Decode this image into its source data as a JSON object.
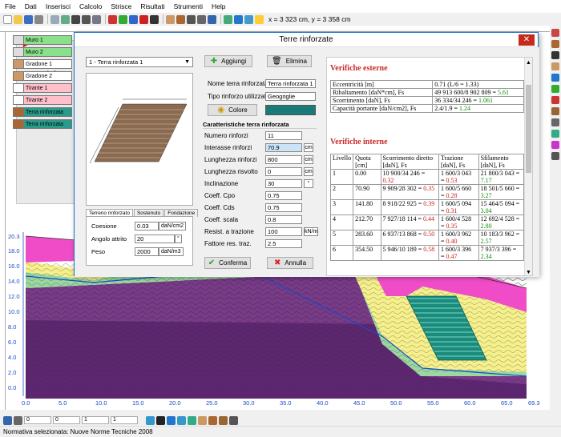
{
  "menu": [
    "File",
    "Dati",
    "Inserisci",
    "Calcolo",
    "Strisce",
    "Risultati",
    "Strumenti",
    "Help"
  ],
  "toolbar": {
    "coords": "x = 3 323 cm, y = 3 358 cm"
  },
  "background_panel": {
    "title": "Terra rinfo",
    "items": [
      {
        "label": "Muro 1",
        "color": "#8be08b"
      },
      {
        "label": "Muro 2",
        "color": "#8be08b"
      },
      {
        "label": "Gradone 1",
        "color": "#ffffff"
      },
      {
        "label": "Gradone 2",
        "color": "#ffffff"
      },
      {
        "label": "Tirante 1",
        "color": "#ffc0cb"
      },
      {
        "label": "Tirante 2",
        "color": "#ffc0cb"
      },
      {
        "label": "Terra rinforzata",
        "color": "#2a9c8c"
      },
      {
        "label": "Terra rinforzata",
        "color": "#2a9c8c"
      }
    ]
  },
  "dialog": {
    "title": "Terre rinforzate",
    "selector": "1 - Terra rinforzata 1",
    "add_button": "Aggiungi",
    "delete_button": "Elimina",
    "name_label": "Nome terra rinforzata",
    "name_value": "Terra rinforzata 1",
    "type_label": "Tipo rinforzo utilizzato",
    "type_value": "Geogriglie",
    "color_button": "Colore",
    "color_value": "#1a7a7a",
    "section_title": "Caratteristiche terra rinforzata",
    "fields": [
      {
        "label": "Numero rinforzi",
        "value": "11",
        "unit": ""
      },
      {
        "label": "Interasse rinforzi",
        "value": "70.9",
        "unit": "cm"
      },
      {
        "label": "Lunghezza rinforzi",
        "value": "800",
        "unit": "cm"
      },
      {
        "label": "Lunghezza risvolto",
        "value": "0",
        "unit": "cm"
      },
      {
        "label": "Inclinazione",
        "value": "30",
        "unit": "°"
      },
      {
        "label": "Coeff. Cpo",
        "value": "0.75",
        "unit": ""
      },
      {
        "label": "Coeff. Cds",
        "value": "0.75",
        "unit": ""
      },
      {
        "label": "Coeff. scala",
        "value": "0.8",
        "unit": ""
      },
      {
        "label": "Resist. a trazione",
        "value": "100",
        "unit": "kN/m"
      },
      {
        "label": "Fattore res. traz.",
        "value": "2.5",
        "unit": ""
      }
    ],
    "tabs": [
      "Terreno rinforzato",
      "Sostenuto",
      "Fondazione"
    ],
    "soil": [
      {
        "label": "Coesione",
        "value": "0.03",
        "unit": "daN/cm2"
      },
      {
        "label": "Angolo attrito",
        "value": "20",
        "unit": "°"
      },
      {
        "label": "Peso",
        "value": "2000",
        "unit": "daN/m3"
      }
    ],
    "confirm_button": "Conferma",
    "cancel_button": "Annulla"
  },
  "verifiche": {
    "external_title": "Verifiche esterne",
    "external": [
      {
        "label": "Eccentricità [m]",
        "value": "0.71 (L/6 = 1.33)",
        "result": ""
      },
      {
        "label": "Ribaltamento [daN*cm], Fs",
        "value": "49 913 600/8 902 809 = ",
        "result": "5.61"
      },
      {
        "label": "Scorrimento [daN], Fs",
        "value": "36 334/34 246 = ",
        "result": "1.061"
      },
      {
        "label": "Capacità portante [daN/cm2], Fs",
        "value": "2.4/1.9 = ",
        "result": "1.24"
      }
    ],
    "internal_title": "Verifiche interne",
    "internal_headers": [
      "Livello",
      "Quota [cm]",
      "Scorrimento diretto [daN], Fs",
      "Trazione [daN], Fs",
      "Sfilamento [daN], Fs"
    ],
    "internal": [
      {
        "level": "1",
        "quota": "0.00",
        "scorr": "10 900/34 246 = ",
        "scorr_fs": "0.32",
        "traz": "1 600/3 043 = ",
        "traz_fs": "0.53",
        "sfil": "21 800/3 043 = ",
        "sfil_fs": "7.17"
      },
      {
        "level": "2",
        "quota": "70.90",
        "scorr": "9 909/28 302 = ",
        "scorr_fs": "0.35",
        "traz": "1 600/5 660 = ",
        "traz_fs": "0.28",
        "sfil": "18 501/5 660 = ",
        "sfil_fs": "3.27"
      },
      {
        "level": "3",
        "quota": "141.80",
        "scorr": "8 918/22 925 = ",
        "scorr_fs": "0.39",
        "traz": "1 600/5 094 = ",
        "traz_fs": "0.31",
        "sfil": "15 464/5 094 = ",
        "sfil_fs": "3.04"
      },
      {
        "level": "4",
        "quota": "212.70",
        "scorr": "7 927/18 114 = ",
        "scorr_fs": "0.44",
        "traz": "1 600/4 528 = ",
        "traz_fs": "0.35",
        "sfil": "12 692/4 528 = ",
        "sfil_fs": "2.80"
      },
      {
        "level": "5",
        "quota": "283.60",
        "scorr": "6 937/13 868 = ",
        "scorr_fs": "0.50",
        "traz": "1 600/3 962 = ",
        "traz_fs": "0.40",
        "sfil": "10 183/3 962 = ",
        "sfil_fs": "2.57"
      },
      {
        "level": "6",
        "quota": "354.50",
        "scorr": "5 946/10 189 = ",
        "scorr_fs": "0.58",
        "traz": "1 600/3 396 = ",
        "traz_fs": "0.47",
        "sfil": "7 937/3 396 = ",
        "sfil_fs": "2.34"
      }
    ]
  },
  "plot": {
    "y_ticks": [
      "20.3",
      "18.0",
      "16.0",
      "14.0",
      "12.0",
      "10.0",
      "8.0",
      "6.0",
      "4.0",
      "2.0",
      "0.0"
    ],
    "x_ticks": [
      "0.0",
      "5.0",
      "10.0",
      "15.0",
      "20.0",
      "25.0",
      "30.0",
      "35.0",
      "40.0",
      "45.0",
      "50.0",
      "55.0",
      "60.0",
      "65.0",
      "69.3"
    ]
  },
  "bottombar": {
    "field1": "0",
    "field2": "0",
    "field3": "1",
    "field4": "1"
  },
  "status": "Normativa selezionata: Nuove Norme Tecniche 2008"
}
